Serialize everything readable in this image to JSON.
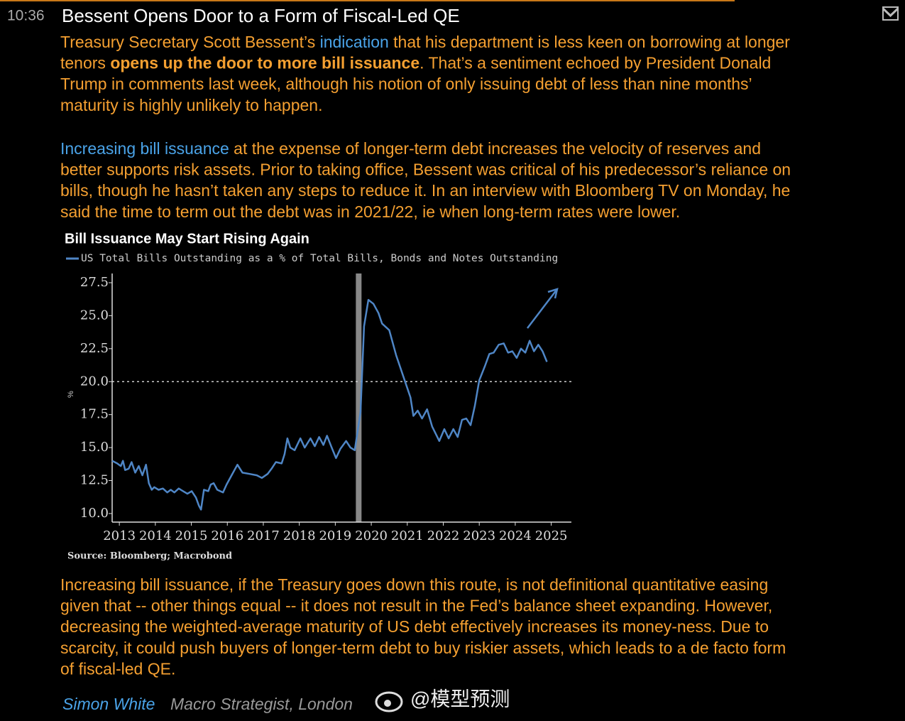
{
  "header": {
    "time": "10:36",
    "title": "Bessent Opens Door to a Form of Fiscal-Led QE"
  },
  "paragraphs": [
    [
      [
        {
          "text": "Treasury Secretary Scott Bessent’s ",
          "style": "plain"
        },
        {
          "text": "indication",
          "style": "link"
        },
        {
          "text": " that his department is less keen on borrowing at longer",
          "style": "plain"
        }
      ],
      [
        {
          "text": "tenors ",
          "style": "plain"
        },
        {
          "text": "opens up the door to more bill issuance",
          "style": "bold"
        },
        {
          "text": ". That’s a sentiment echoed by President Donald",
          "style": "plain"
        }
      ],
      [
        {
          "text": "Trump in comments last week, although his notion of only issuing debt of less than nine months’",
          "style": "plain"
        }
      ],
      [
        {
          "text": "maturity is highly unlikely to happen.",
          "style": "plain"
        }
      ]
    ],
    [
      [
        {
          "text": "Increasing bill issuance",
          "style": "link"
        },
        {
          "text": " at the expense of longer-term debt increases the velocity of reserves and",
          "style": "plain"
        }
      ],
      [
        {
          "text": "better supports risk assets. Prior to taking office, Bessent was critical of his predecessor’s reliance on",
          "style": "plain"
        }
      ],
      [
        {
          "text": "bills, though he hasn’t taken any steps to reduce it. In an interview with Bloomberg TV on Monday, he",
          "style": "plain"
        }
      ],
      [
        {
          "text": "said the time to term out the debt was in 2021/22, ie when long-term rates were lower.",
          "style": "plain"
        }
      ]
    ],
    [
      [
        {
          "text": "Increasing bill issuance, if the Treasury goes down this route, is not definitional quantitative easing",
          "style": "plain"
        }
      ],
      [
        {
          "text": "given that -- other things equal -- it does not result in the Fed’s balance sheet expanding. However,",
          "style": "plain"
        }
      ],
      [
        {
          "text": "decreasing the weighted-average maturity of US debt effectively increases its money-ness. Due to",
          "style": "plain"
        }
      ],
      [
        {
          "text": "scarcity, it could push buyers of longer-term debt to buy riskier assets, which leads to a de facto form",
          "style": "plain"
        }
      ],
      [
        {
          "text": "of fiscal-led QE.",
          "style": "plain"
        }
      ]
    ]
  ],
  "chart_data": {
    "type": "line",
    "title": "Bill Issuance May Start Rising Again",
    "ylabel": "%",
    "source": "Source: Bloomberg; Macrobond",
    "x": [
      2012.8,
      2012.94,
      2013.04,
      2013.1,
      2013.16,
      2013.26,
      2013.34,
      2013.44,
      2013.54,
      2013.64,
      2013.74,
      2013.82,
      2013.9,
      2013.97,
      2014.09,
      2014.21,
      2014.33,
      2014.43,
      2014.53,
      2014.65,
      2014.77,
      2014.89,
      2015.01,
      2015.13,
      2015.21,
      2015.27,
      2015.35,
      2015.47,
      2015.54,
      2015.62,
      2015.72,
      2015.88,
      2015.98,
      2016.12,
      2016.28,
      2016.42,
      2016.62,
      2016.82,
      2016.96,
      2017.12,
      2017.23,
      2017.35,
      2017.51,
      2017.59,
      2017.67,
      2017.75,
      2017.87,
      2018.03,
      2018.15,
      2018.31,
      2018.43,
      2018.55,
      2018.67,
      2018.77,
      2018.9,
      2019.02,
      2019.14,
      2019.3,
      2019.42,
      2019.54,
      2019.7,
      2019.8,
      2019.92,
      2020.06,
      2020.2,
      2020.3,
      2020.5,
      2020.69,
      2020.89,
      2021.09,
      2021.17,
      2021.29,
      2021.41,
      2021.55,
      2021.69,
      2021.89,
      2022.03,
      2022.15,
      2022.28,
      2022.4,
      2022.52,
      2022.64,
      2022.76,
      2022.88,
      2023.0,
      2023.16,
      2023.28,
      2023.4,
      2023.54,
      2023.68,
      2023.8,
      2023.92,
      2024.04,
      2024.16,
      2024.28,
      2024.4,
      2024.52,
      2024.64,
      2024.76,
      2024.88
    ],
    "series": [
      {
        "name": "US Total Bills Outstanding as a % of Total Bills, Bonds and Notes Outstanding",
        "color": "#4f86c6",
        "values": [
          14.0,
          13.8,
          13.6,
          14.0,
          13.3,
          13.4,
          13.9,
          13.1,
          13.6,
          12.9,
          13.7,
          12.3,
          11.8,
          12.0,
          11.8,
          11.9,
          11.6,
          11.8,
          11.6,
          11.9,
          11.7,
          11.5,
          11.7,
          11.2,
          10.6,
          10.3,
          11.8,
          11.7,
          12.2,
          12.3,
          11.8,
          11.6,
          12.2,
          12.9,
          13.7,
          13.1,
          13.0,
          12.9,
          12.7,
          13.0,
          13.4,
          13.9,
          13.8,
          14.5,
          15.7,
          15.0,
          14.8,
          15.7,
          15.0,
          15.7,
          15.1,
          15.8,
          15.2,
          15.9,
          15.0,
          14.2,
          14.9,
          15.5,
          15.0,
          14.8,
          17.7,
          24.2,
          26.2,
          25.9,
          25.2,
          24.4,
          23.9,
          22.0,
          20.4,
          18.8,
          17.4,
          17.8,
          17.2,
          17.9,
          16.6,
          15.5,
          16.4,
          15.7,
          16.4,
          15.8,
          17.1,
          17.2,
          16.7,
          18.2,
          20.1,
          21.2,
          22.1,
          22.2,
          22.8,
          22.9,
          22.2,
          22.3,
          21.8,
          22.5,
          22.2,
          23.1,
          22.3,
          22.8,
          22.3,
          21.5
        ]
      }
    ],
    "xlim": [
      2012.8,
      2025.56
    ],
    "ylim": [
      9.35,
      28.2
    ],
    "xticks": [
      2013,
      2014,
      2015,
      2016,
      2017,
      2018,
      2019,
      2020,
      2021,
      2022,
      2023,
      2024,
      2025
    ],
    "yticks": [
      {
        "value": 10,
        "label": "10.0"
      },
      12.5,
      {
        "value": 15,
        "label": "15.0"
      },
      17.5,
      {
        "value": 20,
        "label": "20.0"
      },
      22.5,
      {
        "value": 25,
        "label": "25.0"
      },
      27.5
    ],
    "reference_y": 20,
    "highlight_x": 2019.65
  },
  "byline": {
    "name": "Simon White",
    "role": "Macro Strategist, London"
  },
  "watermark": "@模型预测"
}
